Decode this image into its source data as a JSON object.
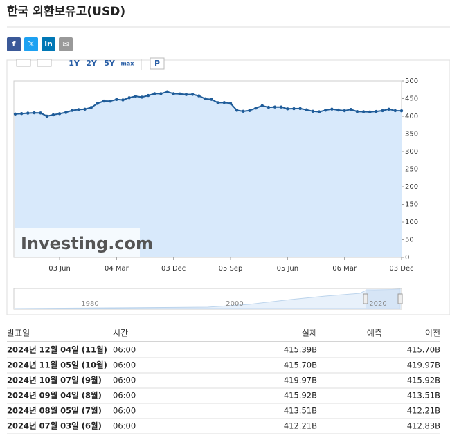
{
  "header": {
    "title": "한국 외환보유고(USD)"
  },
  "share_buttons": [
    "f",
    "𝕏",
    "in",
    "✉"
  ],
  "toolbar": [
    "1Y",
    "2Y",
    "5Y",
    "max",
    "P"
  ],
  "chart_data": {
    "type": "line",
    "categories": [
      null,
      null,
      null,
      null,
      null,
      null,
      null,
      "03 Jun",
      null,
      null,
      null,
      null,
      null,
      null,
      null,
      null,
      "04 Mar",
      null,
      null,
      null,
      null,
      null,
      null,
      null,
      null,
      "03 Dec",
      null,
      null,
      null,
      null,
      null,
      null,
      null,
      null,
      "05 Sep",
      null,
      null,
      null,
      null,
      null,
      null,
      null,
      null,
      "05 Jun",
      null,
      null,
      null,
      null,
      null,
      null,
      null,
      null,
      "06 Mar",
      null,
      null,
      null,
      null,
      null,
      null,
      null,
      null,
      "03 Dec"
    ],
    "values": [
      406.3,
      407.5,
      408.8,
      409.7,
      409.2,
      400.2,
      403.9,
      407.3,
      410.7,
      416.5,
      418.8,
      420.0,
      424.8,
      436.5,
      443.1,
      442.7,
      447.5,
      446.1,
      452.3,
      456.5,
      454.1,
      458.7,
      463.9,
      463.9,
      469.2,
      463.9,
      463.1,
      461.5,
      461.8,
      457.8,
      449.3,
      447.7,
      438.3,
      438.6,
      436.4,
      416.8,
      414.0,
      416.1,
      423.2,
      429.9,
      425.3,
      426.1,
      426.1,
      420.9,
      421.5,
      421.8,
      418.3,
      414.1,
      412.5,
      417.1,
      420.1,
      417.6,
      415.7,
      419.2,
      413.3,
      412.8,
      412.2,
      413.5,
      415.9,
      420.0,
      415.7,
      415.4
    ],
    "color": "#1f5c99",
    "area_color": "#d8e9fb",
    "ylim": [
      0,
      500
    ],
    "yticks": [
      0,
      50,
      100,
      150,
      200,
      250,
      300,
      350,
      400,
      450,
      500
    ],
    "watermark": "Investing.com",
    "navigator_labels": [
      "1980",
      "2000",
      "2020"
    ]
  },
  "table": {
    "columns": [
      "발표일",
      "시간",
      "실제",
      "예측",
      "이전"
    ],
    "rows": [
      {
        "date": "2024년 12월 04일 (11월)",
        "time": "06:00",
        "actual": "415.39B",
        "previous": "415.70B"
      },
      {
        "date": "2024년 11월 05일 (10월)",
        "time": "06:00",
        "actual": "415.70B",
        "previous": "419.97B"
      },
      {
        "date": "2024년 10월 07일 (9월)",
        "time": "06:00",
        "actual": "419.97B",
        "previous": "415.92B"
      },
      {
        "date": "2024년 09월 04일 (8월)",
        "time": "06:00",
        "actual": "415.92B",
        "previous": "413.51B"
      },
      {
        "date": "2024년 08월 05일 (7월)",
        "time": "06:00",
        "actual": "413.51B",
        "previous": "412.21B"
      },
      {
        "date": "2024년 07월 03일 (6월)",
        "time": "06:00",
        "actual": "412.21B",
        "previous": "412.83B"
      }
    ]
  }
}
